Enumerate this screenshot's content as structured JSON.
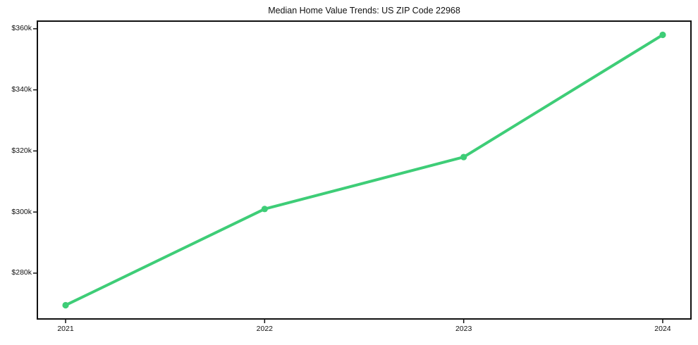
{
  "chart_data": {
    "type": "line",
    "title": "Median Home Value Trends: US ZIP Code 22968",
    "categories": [
      "2021",
      "2022",
      "2023",
      "2024"
    ],
    "values": [
      269500,
      301000,
      318000,
      358000
    ],
    "xlabel": "",
    "ylabel": "",
    "ylim": [
      265000,
      362500
    ],
    "yticks": [
      280000,
      300000,
      320000,
      340000,
      360000
    ],
    "ytick_labels": [
      "$280k",
      "$300k",
      "$320k",
      "$340k",
      "$360k"
    ],
    "grid": false,
    "legend_position": "none",
    "colors": {
      "line": "#3ecd77",
      "marker": "#3ecd77",
      "axis": "#111111",
      "text": "#111111",
      "background": "#ffffff"
    }
  }
}
